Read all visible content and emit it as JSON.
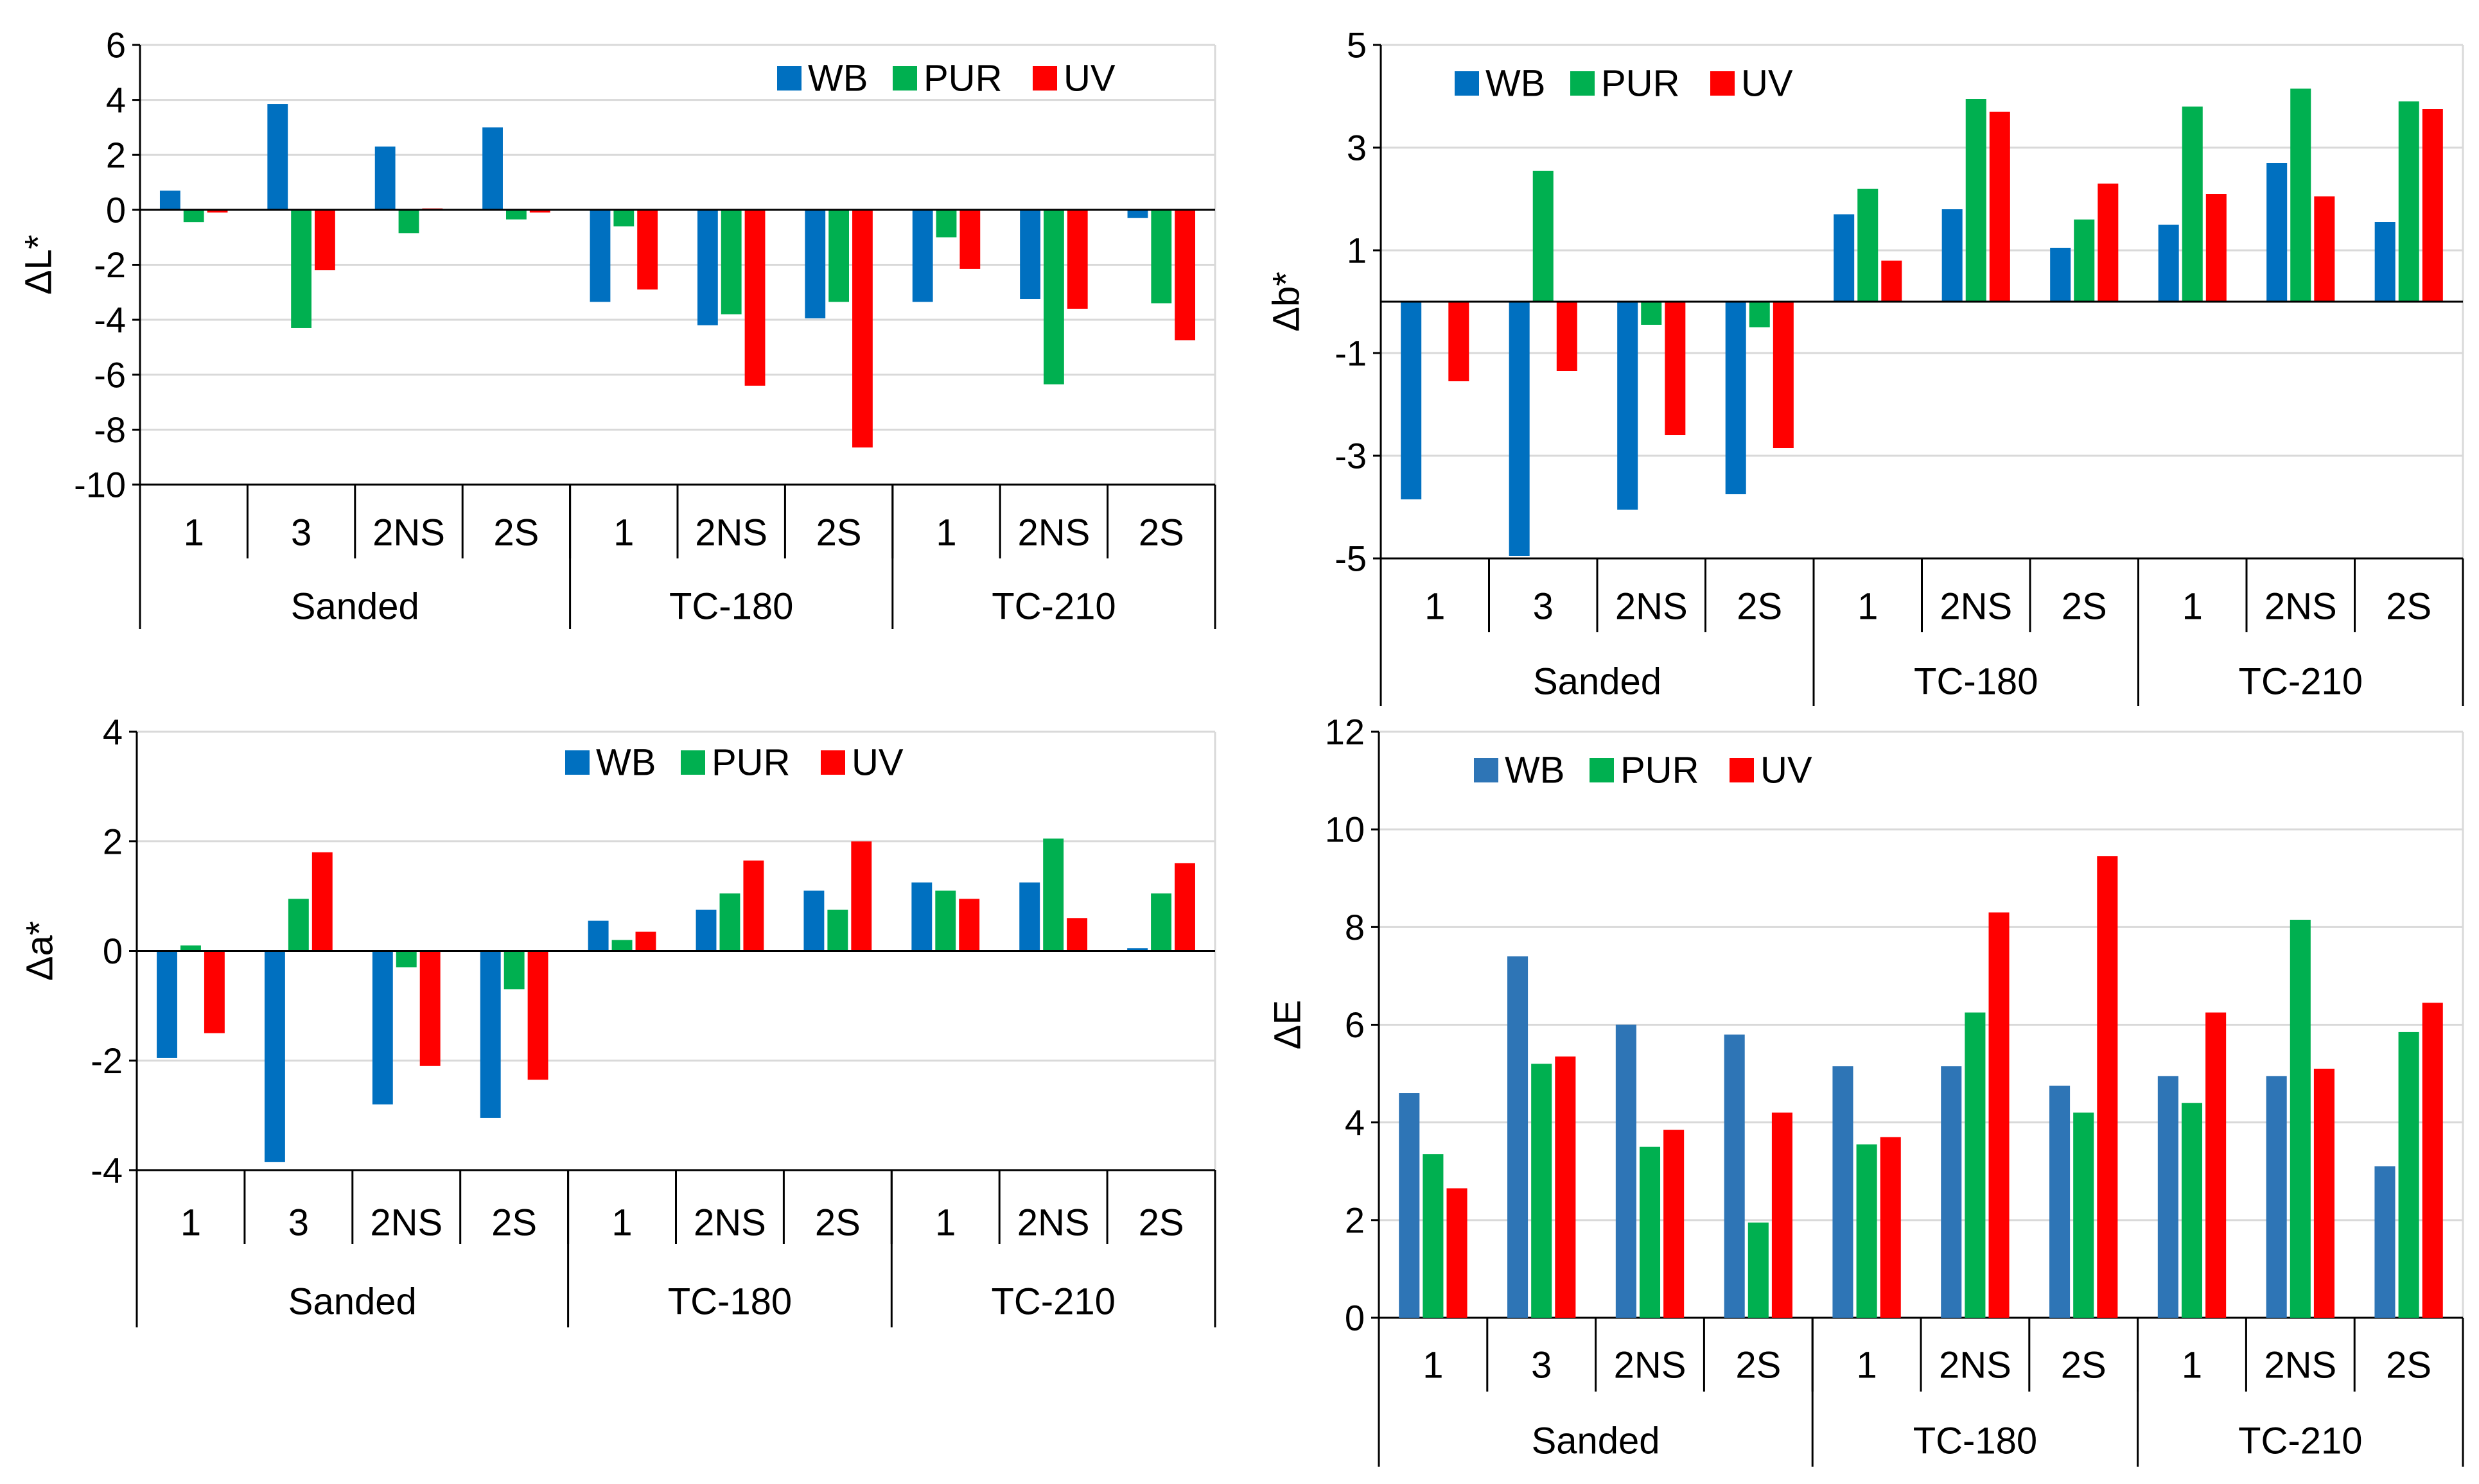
{
  "colors": {
    "WB": "#0070C0",
    "WB_alt": "#2E75B6",
    "PUR": "#00B050",
    "UV": "#FF0000",
    "grid": "#D9D9D9",
    "axis": "#000000"
  },
  "chart_data": [
    {
      "id": "dL",
      "type": "bar",
      "title": "",
      "ylabel": "ΔL*",
      "ylim": [
        -10,
        6
      ],
      "yticks": [
        -10,
        -8,
        -6,
        -4,
        -2,
        0,
        2,
        4,
        6
      ],
      "grid": true,
      "legend_position": "top-right",
      "categories": [
        "1",
        "3",
        "2NS",
        "2S",
        "1",
        "2NS",
        "2S",
        "1",
        "2NS",
        "2S"
      ],
      "groups": [
        {
          "label": "Sanded",
          "count": 4
        },
        {
          "label": "TC-180",
          "count": 3
        },
        {
          "label": "TC-210",
          "count": 3
        }
      ],
      "series": [
        {
          "name": "WB",
          "color_key": "WB",
          "values": [
            0.7,
            3.85,
            2.3,
            3.0,
            -3.35,
            -4.2,
            -3.95,
            -3.35,
            -3.25,
            -0.3
          ]
        },
        {
          "name": "PUR",
          "color_key": "PUR",
          "values": [
            -0.45,
            -4.3,
            -0.85,
            -0.35,
            -0.6,
            -3.8,
            -3.35,
            -1.0,
            -6.35,
            -3.4
          ]
        },
        {
          "name": "UV",
          "color_key": "UV",
          "values": [
            -0.1,
            -2.2,
            0.05,
            -0.1,
            -2.9,
            -6.4,
            -8.65,
            -2.15,
            -3.6,
            -4.75
          ]
        }
      ]
    },
    {
      "id": "db",
      "type": "bar",
      "title": "",
      "ylabel": "Δb*",
      "ylim": [
        -5,
        5
      ],
      "yticks": [
        -5,
        -3,
        -1,
        1,
        3,
        5
      ],
      "grid": true,
      "legend_position": "top-left",
      "categories": [
        "1",
        "3",
        "2NS",
        "2S",
        "1",
        "2NS",
        "2S",
        "1",
        "2NS",
        "2S"
      ],
      "groups": [
        {
          "label": "Sanded",
          "count": 4
        },
        {
          "label": "TC-180",
          "count": 3
        },
        {
          "label": "TC-210",
          "count": 3
        }
      ],
      "series": [
        {
          "name": "WB",
          "color_key": "WB",
          "values": [
            -3.85,
            -4.95,
            -4.05,
            -3.75,
            1.7,
            1.8,
            1.05,
            1.5,
            2.7,
            1.55
          ]
        },
        {
          "name": "PUR",
          "color_key": "PUR",
          "values": [
            0.0,
            2.55,
            -0.45,
            -0.5,
            2.2,
            3.95,
            1.6,
            3.8,
            4.15,
            3.9
          ]
        },
        {
          "name": "UV",
          "color_key": "UV",
          "values": [
            -1.55,
            -1.35,
            -2.6,
            -2.85,
            0.8,
            3.7,
            2.3,
            2.1,
            2.05,
            3.75
          ]
        }
      ]
    },
    {
      "id": "da",
      "type": "bar",
      "title": "",
      "ylabel": "Δa*",
      "ylim": [
        -4,
        4
      ],
      "yticks": [
        -4,
        -2,
        0,
        2,
        4
      ],
      "grid": true,
      "legend_position": "top-center",
      "categories": [
        "1",
        "3",
        "2NS",
        "2S",
        "1",
        "2NS",
        "2S",
        "1",
        "2NS",
        "2S"
      ],
      "groups": [
        {
          "label": "Sanded",
          "count": 4
        },
        {
          "label": "TC-180",
          "count": 3
        },
        {
          "label": "TC-210",
          "count": 3
        }
      ],
      "series": [
        {
          "name": "WB",
          "color_key": "WB",
          "values": [
            -1.95,
            -3.85,
            -2.8,
            -3.05,
            0.55,
            0.75,
            1.1,
            1.25,
            1.25,
            0.05
          ]
        },
        {
          "name": "PUR",
          "color_key": "PUR",
          "values": [
            0.1,
            0.95,
            -0.3,
            -0.7,
            0.2,
            1.05,
            0.75,
            1.1,
            2.05,
            1.05
          ]
        },
        {
          "name": "UV",
          "color_key": "UV",
          "values": [
            -1.5,
            1.8,
            -2.1,
            -2.35,
            0.35,
            1.65,
            2.0,
            0.95,
            0.6,
            1.6
          ]
        }
      ]
    },
    {
      "id": "dE",
      "type": "bar",
      "title": "",
      "ylabel": "ΔE",
      "ylim": [
        0,
        12
      ],
      "yticks": [
        0,
        2,
        4,
        6,
        8,
        10,
        12
      ],
      "grid": true,
      "legend_position": "top-left",
      "categories": [
        "1",
        "3",
        "2NS",
        "2S",
        "1",
        "2NS",
        "2S",
        "1",
        "2NS",
        "2S"
      ],
      "groups": [
        {
          "label": "Sanded",
          "count": 4
        },
        {
          "label": "TC-180",
          "count": 3
        },
        {
          "label": "TC-210",
          "count": 3
        }
      ],
      "series": [
        {
          "name": "WB",
          "color_key": "WB_alt",
          "values": [
            4.6,
            7.4,
            6.0,
            5.8,
            5.15,
            5.15,
            4.75,
            4.95,
            4.95,
            3.1
          ]
        },
        {
          "name": "PUR",
          "color_key": "PUR",
          "values": [
            3.35,
            5.2,
            3.5,
            1.95,
            3.55,
            6.25,
            4.2,
            4.4,
            8.15,
            5.85
          ]
        },
        {
          "name": "UV",
          "color_key": "UV",
          "values": [
            2.65,
            5.35,
            3.85,
            4.2,
            3.7,
            8.3,
            9.45,
            6.25,
            5.1,
            6.45
          ]
        }
      ]
    }
  ]
}
